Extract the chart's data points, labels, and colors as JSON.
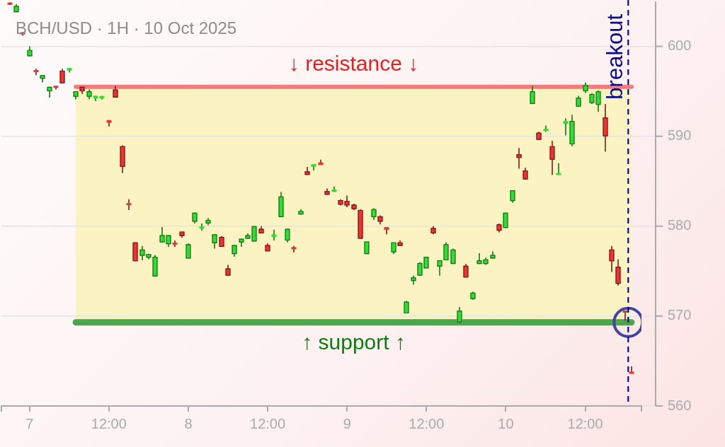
{
  "chart_data": {
    "type": "candlestick",
    "title": "BCH/USD · 1H · 10 Oct 2025",
    "x": [
      "2025-10-06T21:00",
      "2025-10-06T22:00",
      "2025-10-06T23:00",
      "2025-10-07T00:00",
      "2025-10-07T01:00",
      "2025-10-07T02:00",
      "2025-10-07T03:00",
      "2025-10-07T04:00",
      "2025-10-07T05:00",
      "2025-10-07T06:00",
      "2025-10-07T07:00",
      "2025-10-07T08:00",
      "2025-10-07T09:00",
      "2025-10-07T10:00",
      "2025-10-07T11:00",
      "2025-10-07T12:00",
      "2025-10-07T13:00",
      "2025-10-07T14:00",
      "2025-10-07T15:00",
      "2025-10-07T16:00",
      "2025-10-07T17:00",
      "2025-10-07T18:00",
      "2025-10-07T19:00",
      "2025-10-07T20:00",
      "2025-10-07T21:00",
      "2025-10-07T22:00",
      "2025-10-07T23:00",
      "2025-10-08T00:00",
      "2025-10-08T01:00",
      "2025-10-08T02:00",
      "2025-10-08T03:00",
      "2025-10-08T04:00",
      "2025-10-08T05:00",
      "2025-10-08T06:00",
      "2025-10-08T07:00",
      "2025-10-08T08:00",
      "2025-10-08T09:00",
      "2025-10-08T10:00",
      "2025-10-08T11:00",
      "2025-10-08T12:00",
      "2025-10-08T13:00",
      "2025-10-08T14:00",
      "2025-10-08T15:00",
      "2025-10-08T16:00",
      "2025-10-08T17:00",
      "2025-10-08T18:00",
      "2025-10-08T19:00",
      "2025-10-08T20:00",
      "2025-10-08T21:00",
      "2025-10-08T22:00",
      "2025-10-08T23:00",
      "2025-10-09T00:00",
      "2025-10-09T01:00",
      "2025-10-09T02:00",
      "2025-10-09T03:00",
      "2025-10-09T04:00",
      "2025-10-09T05:00",
      "2025-10-09T06:00",
      "2025-10-09T07:00",
      "2025-10-09T08:00",
      "2025-10-09T09:00",
      "2025-10-09T10:00",
      "2025-10-09T11:00",
      "2025-10-09T12:00",
      "2025-10-09T13:00",
      "2025-10-09T14:00",
      "2025-10-09T15:00",
      "2025-10-09T16:00",
      "2025-10-09T17:00",
      "2025-10-09T18:00",
      "2025-10-09T19:00",
      "2025-10-09T20:00",
      "2025-10-09T21:00",
      "2025-10-09T22:00",
      "2025-10-09T23:00",
      "2025-10-10T00:00",
      "2025-10-10T01:00",
      "2025-10-10T02:00",
      "2025-10-10T03:00",
      "2025-10-10T04:00",
      "2025-10-10T05:00",
      "2025-10-10T06:00",
      "2025-10-10T07:00",
      "2025-10-10T08:00",
      "2025-10-10T09:00",
      "2025-10-10T10:00",
      "2025-10-10T11:00",
      "2025-10-10T12:00",
      "2025-10-10T13:00",
      "2025-10-10T14:00",
      "2025-10-10T15:00",
      "2025-10-10T16:00",
      "2025-10-10T17:00",
      "2025-10-10T18:00",
      "2025-10-10T19:00"
    ],
    "ohlc": [
      [
        604.8,
        604.9,
        604.6,
        604.7
      ],
      [
        603.8,
        604.7,
        603.8,
        604.5
      ],
      [
        601.5,
        601.6,
        601.2,
        601.4
      ],
      [
        598.9,
        600.0,
        598.9,
        599.6
      ],
      [
        597.3,
        597.5,
        596.8,
        597.2
      ],
      [
        596.4,
        596.8,
        596.0,
        596.8
      ],
      [
        595.0,
        595.5,
        594.3,
        595.5
      ],
      [
        595.6,
        595.6,
        595.2,
        595.4
      ],
      [
        597.3,
        597.5,
        595.9,
        595.9
      ],
      [
        597.3,
        597.6,
        597.1,
        597.6
      ],
      [
        594.4,
        595.0,
        594.1,
        595.0
      ],
      [
        595.5,
        595.5,
        594.7,
        595.0
      ],
      [
        594.4,
        595.2,
        594.1,
        595.0
      ],
      [
        594.2,
        594.5,
        593.9,
        594.5
      ],
      [
        594.3,
        594.5,
        594.1,
        594.4
      ],
      [
        591.8,
        591.8,
        591.1,
        591.5
      ],
      [
        595.2,
        595.6,
        594.3,
        594.3
      ],
      [
        588.9,
        589.0,
        585.9,
        586.6
      ],
      [
        582.5,
        583.0,
        581.8,
        582.4
      ],
      [
        578.2,
        578.2,
        576.1,
        576.1
      ],
      [
        576.7,
        577.8,
        576.2,
        577.4
      ],
      [
        576.5,
        576.9,
        576.3,
        576.9
      ],
      [
        574.4,
        576.8,
        574.4,
        576.6
      ],
      [
        578.2,
        579.9,
        578.2,
        579.0
      ],
      [
        578.0,
        579.0,
        577.7,
        579.0
      ],
      [
        578.1,
        578.4,
        577.7,
        578.0
      ],
      [
        579.4,
        579.4,
        578.7,
        578.9
      ],
      [
        576.4,
        578.1,
        576.4,
        578.0
      ],
      [
        580.5,
        581.5,
        580.3,
        581.5
      ],
      [
        579.8,
        580.3,
        579.5,
        579.9
      ],
      [
        580.3,
        580.9,
        580.1,
        580.7
      ],
      [
        578.1,
        579.1,
        577.5,
        579.1
      ],
      [
        578.8,
        578.9,
        577.7,
        577.7
      ],
      [
        575.3,
        575.7,
        574.5,
        574.5
      ],
      [
        576.9,
        577.9,
        576.6,
        577.9
      ],
      [
        578.2,
        578.6,
        577.7,
        578.6
      ],
      [
        578.6,
        579.2,
        578.6,
        579.0
      ],
      [
        578.3,
        580.0,
        578.3,
        580.0
      ],
      [
        579.7,
        580.0,
        579.2,
        579.2
      ],
      [
        577.9,
        578.1,
        577.2,
        577.2
      ],
      [
        578.8,
        579.6,
        578.4,
        579.1
      ],
      [
        581.0,
        583.8,
        581.0,
        583.3
      ],
      [
        578.4,
        579.7,
        578.2,
        579.7
      ],
      [
        577.6,
        577.8,
        577.1,
        577.5
      ],
      [
        581.3,
        581.9,
        581.3,
        581.7
      ],
      [
        586.1,
        586.6,
        585.7,
        585.7
      ],
      [
        586.6,
        586.9,
        586.2,
        586.9
      ],
      [
        587.1,
        587.4,
        586.8,
        586.8
      ],
      [
        583.9,
        584.2,
        583.5,
        583.5
      ],
      [
        583.9,
        584.4,
        583.8,
        584.0
      ],
      [
        582.9,
        583.0,
        582.3,
        582.4
      ],
      [
        582.8,
        583.4,
        582.1,
        582.3
      ],
      [
        582.4,
        582.5,
        581.8,
        581.9
      ],
      [
        581.8,
        581.9,
        578.6,
        578.6
      ],
      [
        576.9,
        578.3,
        576.9,
        578.3
      ],
      [
        581.0,
        582.0,
        580.7,
        581.9
      ],
      [
        581.1,
        581.2,
        580.2,
        580.5
      ],
      [
        579.9,
        579.9,
        579.1,
        579.6
      ],
      [
        577.1,
        578.2,
        576.9,
        578.2
      ],
      [
        578.2,
        578.4,
        577.8,
        577.8
      ],
      [
        570.3,
        571.7,
        570.3,
        571.6
      ],
      [
        573.9,
        574.5,
        573.5,
        574.3
      ],
      [
        574.5,
        576.0,
        574.5,
        575.9
      ],
      [
        575.3,
        576.6,
        575.3,
        576.6
      ],
      [
        579.8,
        580.0,
        579.1,
        579.2
      ],
      [
        575.5,
        576.2,
        574.5,
        576.2
      ],
      [
        576.2,
        578.2,
        576.2,
        578.0
      ],
      [
        575.8,
        577.5,
        575.8,
        577.4
      ],
      [
        569.3,
        571.0,
        569.2,
        570.6
      ],
      [
        575.6,
        575.8,
        574.3,
        574.3
      ],
      [
        571.9,
        572.7,
        571.8,
        572.6
      ],
      [
        575.8,
        577.0,
        575.8,
        576.2
      ],
      [
        575.8,
        576.5,
        575.7,
        576.3
      ],
      [
        576.4,
        577.2,
        576.4,
        576.8
      ],
      [
        580.2,
        580.3,
        579.3,
        579.5
      ],
      [
        579.8,
        581.5,
        579.8,
        581.5
      ],
      [
        582.8,
        584.0,
        582.6,
        584.0
      ],
      [
        588.0,
        588.7,
        586.4,
        587.6
      ],
      [
        586.2,
        586.5,
        585.2,
        585.2
      ],
      [
        593.6,
        595.6,
        593.6,
        595.0
      ],
      [
        590.4,
        590.5,
        589.6,
        589.6
      ],
      [
        590.6,
        591.2,
        590.5,
        590.8
      ],
      [
        588.9,
        589.5,
        585.7,
        587.4
      ],
      [
        585.7,
        587.0,
        585.7,
        585.9
      ],
      [
        591.4,
        592.0,
        590.1,
        591.7
      ],
      [
        589.1,
        592.4,
        588.9,
        591.7
      ],
      [
        593.3,
        594.5,
        593.3,
        594.3
      ],
      [
        595.0,
        596.0,
        594.8,
        595.7
      ],
      [
        593.7,
        594.8,
        593.6,
        594.7
      ],
      [
        593.5,
        595.1,
        592.7,
        595.0
      ],
      [
        592.1,
        593.6,
        588.3,
        590.0
      ],
      [
        577.4,
        577.8,
        574.9,
        576.1
      ],
      [
        575.5,
        576.3,
        573.4,
        573.6
      ],
      [
        570.6,
        570.6,
        569.5,
        570.4
      ],
      [
        563.8,
        564.4,
        563.6,
        563.6
      ]
    ],
    "colors": [
      "#ee3333",
      "#33dd33",
      "#ee3333",
      "#33dd33",
      "#ee3333",
      "#33dd33",
      "#33dd33",
      "#ee3333",
      "#ee3333",
      "#33dd33",
      "#33dd33",
      "#ee3333",
      "#33dd33",
      "#33dd33",
      "#33dd33",
      "#ee3333",
      "#ee3333",
      "#ee3333",
      "#ee3333",
      "#ee3333",
      "#33dd33",
      "#33dd33",
      "#33dd33",
      "#33dd33",
      "#33dd33",
      "#ee3333",
      "#ee3333",
      "#33dd33",
      "#33dd33",
      "#33dd33",
      "#33dd33",
      "#33dd33",
      "#ee3333",
      "#ee3333",
      "#33dd33",
      "#33dd33",
      "#33dd33",
      "#33dd33",
      "#ee3333",
      "#ee3333",
      "#33dd33",
      "#33dd33",
      "#33dd33",
      "#ee3333",
      "#33dd33",
      "#ee3333",
      "#33dd33",
      "#ee3333",
      "#ee3333",
      "#33dd33",
      "#ee3333",
      "#ee3333",
      "#ee3333",
      "#ee3333",
      "#33dd33",
      "#33dd33",
      "#ee3333",
      "#ee3333",
      "#33dd33",
      "#ee3333",
      "#33dd33",
      "#33dd33",
      "#33dd33",
      "#33dd33",
      "#ee3333",
      "#33dd33",
      "#33dd33",
      "#33dd33",
      "#33dd33",
      "#ee3333",
      "#33dd33",
      "#33dd33",
      "#33dd33",
      "#33dd33",
      "#ee3333",
      "#33dd33",
      "#33dd33",
      "#ee3333",
      "#ee3333",
      "#33dd33",
      "#ee3333",
      "#33dd33",
      "#ee3333",
      "#33dd33",
      "#33dd33",
      "#33dd33",
      "#33dd33",
      "#33dd33",
      "#33dd33",
      "#33dd33",
      "#ee3333",
      "#ee3333",
      "#ee3333",
      "#ee3333",
      "#ee3333"
    ],
    "series": [
      {
        "type": "line",
        "name": "↓ resistance ↓",
        "x": [
          "2025-10-07T07:00",
          "2025-10-10T19:00"
        ],
        "values": [
          595.5,
          595.5
        ],
        "color": "#f47c7c"
      },
      {
        "type": "line",
        "name": "↑ support ↑",
        "x": [
          "2025-10-07T07:00",
          "2025-10-10T19:00"
        ],
        "values": [
          569.3,
          569.3
        ],
        "color": "#4ca64c"
      },
      {
        "type": "scatter",
        "x": [
          "2025-10-10T18:30"
        ],
        "values": [
          569.3
        ],
        "color": "#4343a0",
        "marker": "circle"
      }
    ],
    "xlim": [
      "2025-10-06T19:45",
      "2025-10-10T20:30"
    ],
    "xticks": [
      {
        "value": "2025-10-06T19:45",
        "label": null
      },
      {
        "value": "2025-10-07T00:00",
        "label": "7"
      },
      {
        "value": "2025-10-07T12:00",
        "label": "12:00"
      },
      {
        "value": "2025-10-08T00:00",
        "label": "8"
      },
      {
        "value": "2025-10-08T12:00",
        "label": "12:00"
      },
      {
        "value": "2025-10-09T00:00",
        "label": "9"
      },
      {
        "value": "2025-10-09T12:00",
        "label": "12:00"
      },
      {
        "value": "2025-10-10T00:00",
        "label": "10"
      },
      {
        "value": "2025-10-10T12:00",
        "label": "12:00"
      },
      {
        "value": "2025-10-10T20:30",
        "label": null
      }
    ],
    "ylim": [
      560,
      605
    ],
    "yticks": [
      560,
      570,
      580,
      590,
      600
    ],
    "grid": "y",
    "ref_lines": [
      {
        "axis": "x",
        "value": "2025-10-10T18:30",
        "label": "breakout",
        "color": "#0a0a8c",
        "line_style": "dashed"
      }
    ],
    "bands": [
      {
        "axis": "y",
        "from": 569.3,
        "to": 595.5,
        "color": "#fcf3c2"
      }
    ]
  }
}
